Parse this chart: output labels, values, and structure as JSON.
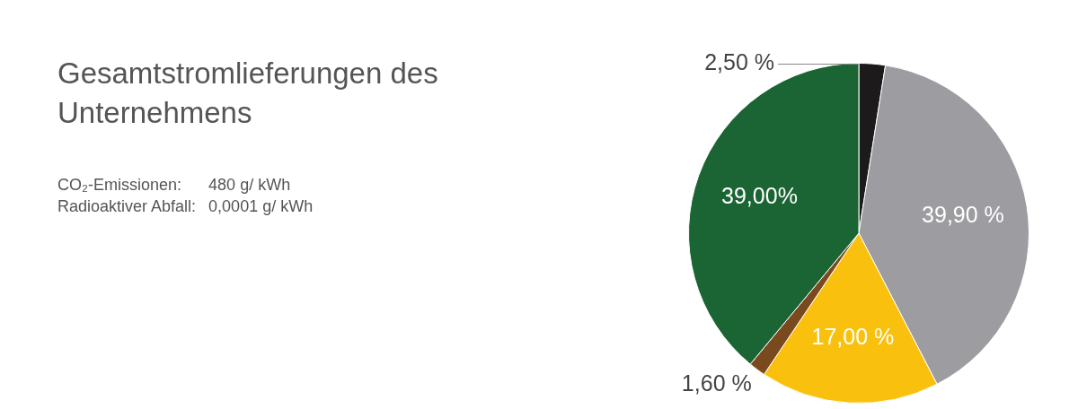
{
  "chart_data": {
    "type": "pie",
    "title": "Gesamtstromlieferungen des Unternehmens",
    "annotations": [
      "CO₂-Emissionen: 480 g/ kWh",
      "Radioaktiver Abfall: 0,0001 g/ kWh"
    ],
    "categories": [
      null,
      null,
      null,
      null,
      null
    ],
    "values": [
      2.5,
      39.9,
      17,
      1.6,
      39
    ],
    "value_labels": [
      "2,50 %",
      "39,90 %",
      "17,00 %",
      "1,60 %",
      "39,00%"
    ],
    "colors": [
      "#1c1a1b",
      "#9d9da1",
      "#f9c10e",
      "#7a4a1e",
      "#1b6433"
    ],
    "legend": false
  }
}
